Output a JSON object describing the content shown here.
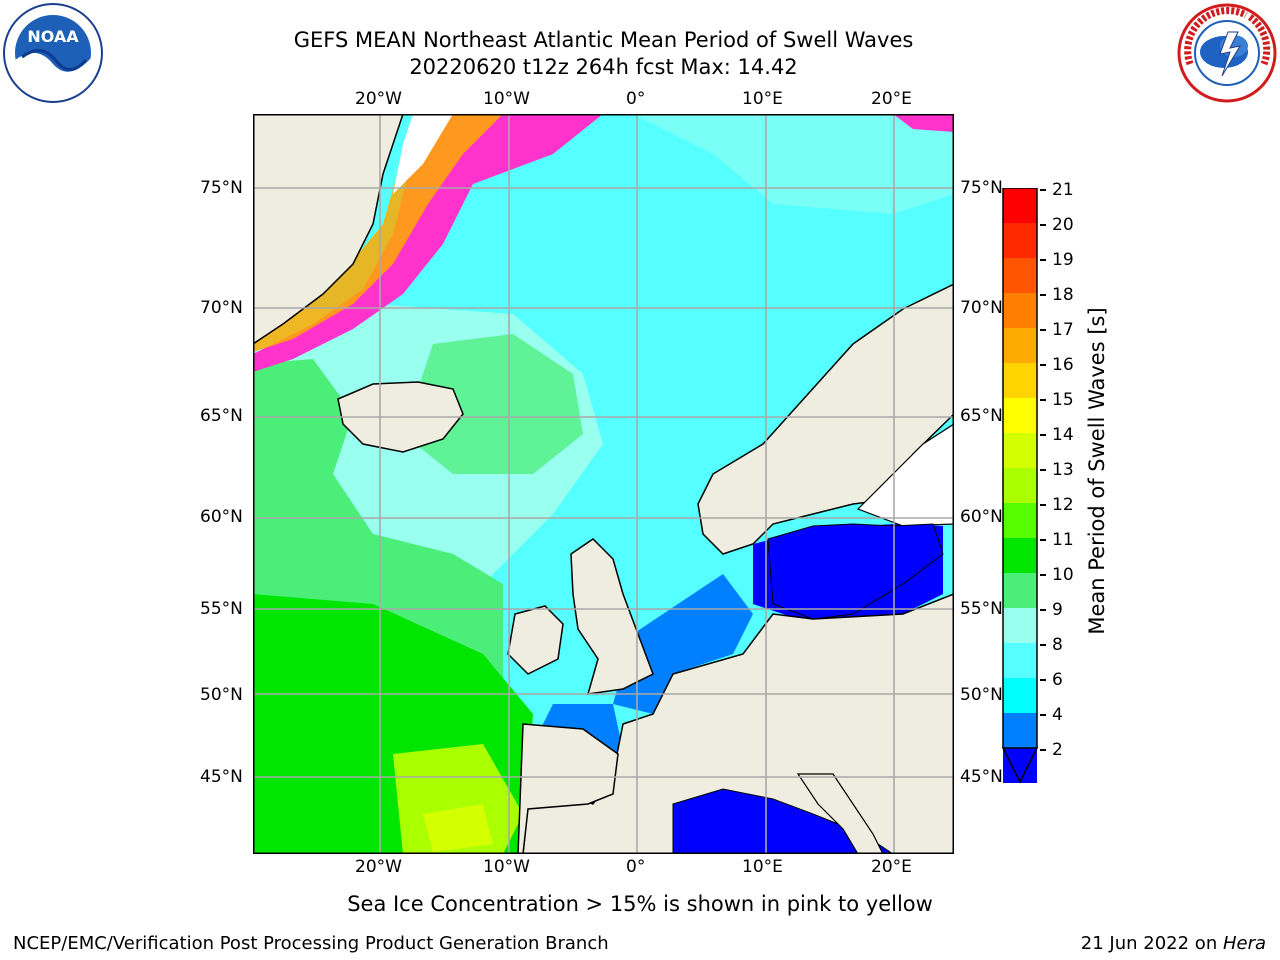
{
  "title": {
    "line1": "GEFS MEAN Northeast Atlantic Mean Period of Swell Waves",
    "line2": "20220620 t12z 264h fcst   Max: 14.42"
  },
  "map": {
    "lon_labels": [
      "20°W",
      "10°W",
      "0°",
      "10°E",
      "20°E"
    ],
    "lat_labels": [
      "75°N",
      "70°N",
      "65°N",
      "60°N",
      "55°N",
      "50°N",
      "45°N"
    ],
    "grid": true
  },
  "colorbar": {
    "label": "Mean Period of Swell Waves [s]",
    "ticks": [
      "21",
      "20",
      "19",
      "18",
      "17",
      "16",
      "15",
      "14",
      "13",
      "12",
      "11",
      "10",
      "9",
      "8",
      "6",
      "4",
      "2"
    ],
    "colors": [
      "#ff0000",
      "#ff2a00",
      "#ff5500",
      "#ff7f00",
      "#ffaa00",
      "#ffd400",
      "#ffff00",
      "#d4ff00",
      "#aaff00",
      "#55ff00",
      "#00e600",
      "#4cee7a",
      "#99ffee",
      "#55ffff",
      "#00ffff",
      "#0080ff",
      "#0000ff"
    ]
  },
  "note": "Sea Ice Concentration > 15% is shown in pink to yellow",
  "footer": {
    "left": "NCEP/EMC/Verification Post Processing Product Generation Branch",
    "right_date": "21 Jun 2022 on ",
    "right_machine": "Hera"
  },
  "logos": {
    "left": "NOAA",
    "right": "NATIONAL WEATHER SERVICE"
  }
}
